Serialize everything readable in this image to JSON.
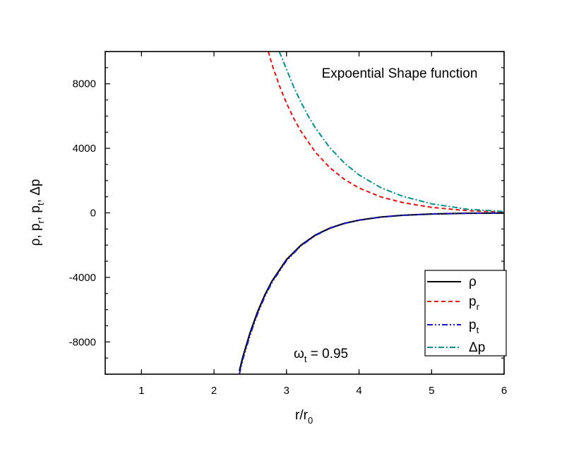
{
  "chart_data": {
    "type": "line",
    "annotation_title": "Expoential Shape function",
    "annotation_param": {
      "symbol": "ω",
      "sub": "t",
      "rest": " = 0.95"
    },
    "xlabel": {
      "main": "r/r",
      "sub": "0"
    },
    "ylabel": "ρ, p_r, p_t, Δp",
    "xlim": [
      0.5,
      6
    ],
    "ylim": [
      -10000,
      10000
    ],
    "x_ticks": [
      1,
      2,
      3,
      4,
      5,
      6
    ],
    "x_tick_labels": [
      "1",
      "2",
      "3",
      "4",
      "5",
      "6"
    ],
    "y_ticks": [
      -8000,
      -4000,
      0,
      4000,
      8000
    ],
    "y_tick_labels": [
      "-8000",
      "-4000",
      "0",
      "4000",
      "8000"
    ],
    "grid": false,
    "legend_position": "bottom-right",
    "series": [
      {
        "name": "ρ",
        "sub": "",
        "color": "#000000",
        "style": "solid",
        "x": [
          2.35,
          2.4,
          2.5,
          2.6,
          2.7,
          2.8,
          3.0,
          3.2,
          3.4,
          3.6,
          3.8,
          4.0,
          4.3,
          4.6,
          5.0,
          5.5,
          6.0
        ],
        "y": [
          -9800,
          -8900,
          -7400,
          -6150,
          -5100,
          -4230,
          -2900,
          -2000,
          -1370,
          -940,
          -650,
          -450,
          -260,
          -150,
          -70,
          -25,
          -10
        ]
      },
      {
        "name": "p",
        "sub": "r",
        "color": "#e8120c",
        "style": "dash",
        "x": [
          2.75,
          2.8,
          2.9,
          3.0,
          3.1,
          3.2,
          3.4,
          3.6,
          3.8,
          4.0,
          4.3,
          4.6,
          5.0,
          5.5,
          6.0
        ],
        "y": [
          10000,
          9200,
          7900,
          6800,
          5850,
          5050,
          3750,
          2790,
          2070,
          1540,
          990,
          640,
          340,
          130,
          50
        ]
      },
      {
        "name": "p",
        "sub": "t",
        "color": "#1818c8",
        "style": "dashdotdot",
        "x": [
          2.35,
          2.4,
          2.5,
          2.6,
          2.7,
          2.8,
          3.0,
          3.2,
          3.4,
          3.6,
          3.8,
          4.0,
          4.3,
          4.6,
          5.0,
          5.5,
          6.0
        ],
        "y": [
          -10000,
          -9050,
          -7550,
          -6270,
          -5200,
          -4310,
          -2960,
          -2040,
          -1400,
          -960,
          -660,
          -460,
          -265,
          -155,
          -72,
          -26,
          -10
        ]
      },
      {
        "name": "Δp",
        "sub": "",
        "color": "#00908f",
        "style": "dashdot",
        "x": [
          2.9,
          2.95,
          3.0,
          3.1,
          3.2,
          3.3,
          3.4,
          3.6,
          3.8,
          4.0,
          4.3,
          4.6,
          5.0,
          5.5,
          6.0
        ],
        "y": [
          10000,
          9450,
          8900,
          7800,
          6850,
          6000,
          5250,
          4020,
          3080,
          2350,
          1560,
          1030,
          560,
          220,
          80
        ]
      }
    ]
  }
}
